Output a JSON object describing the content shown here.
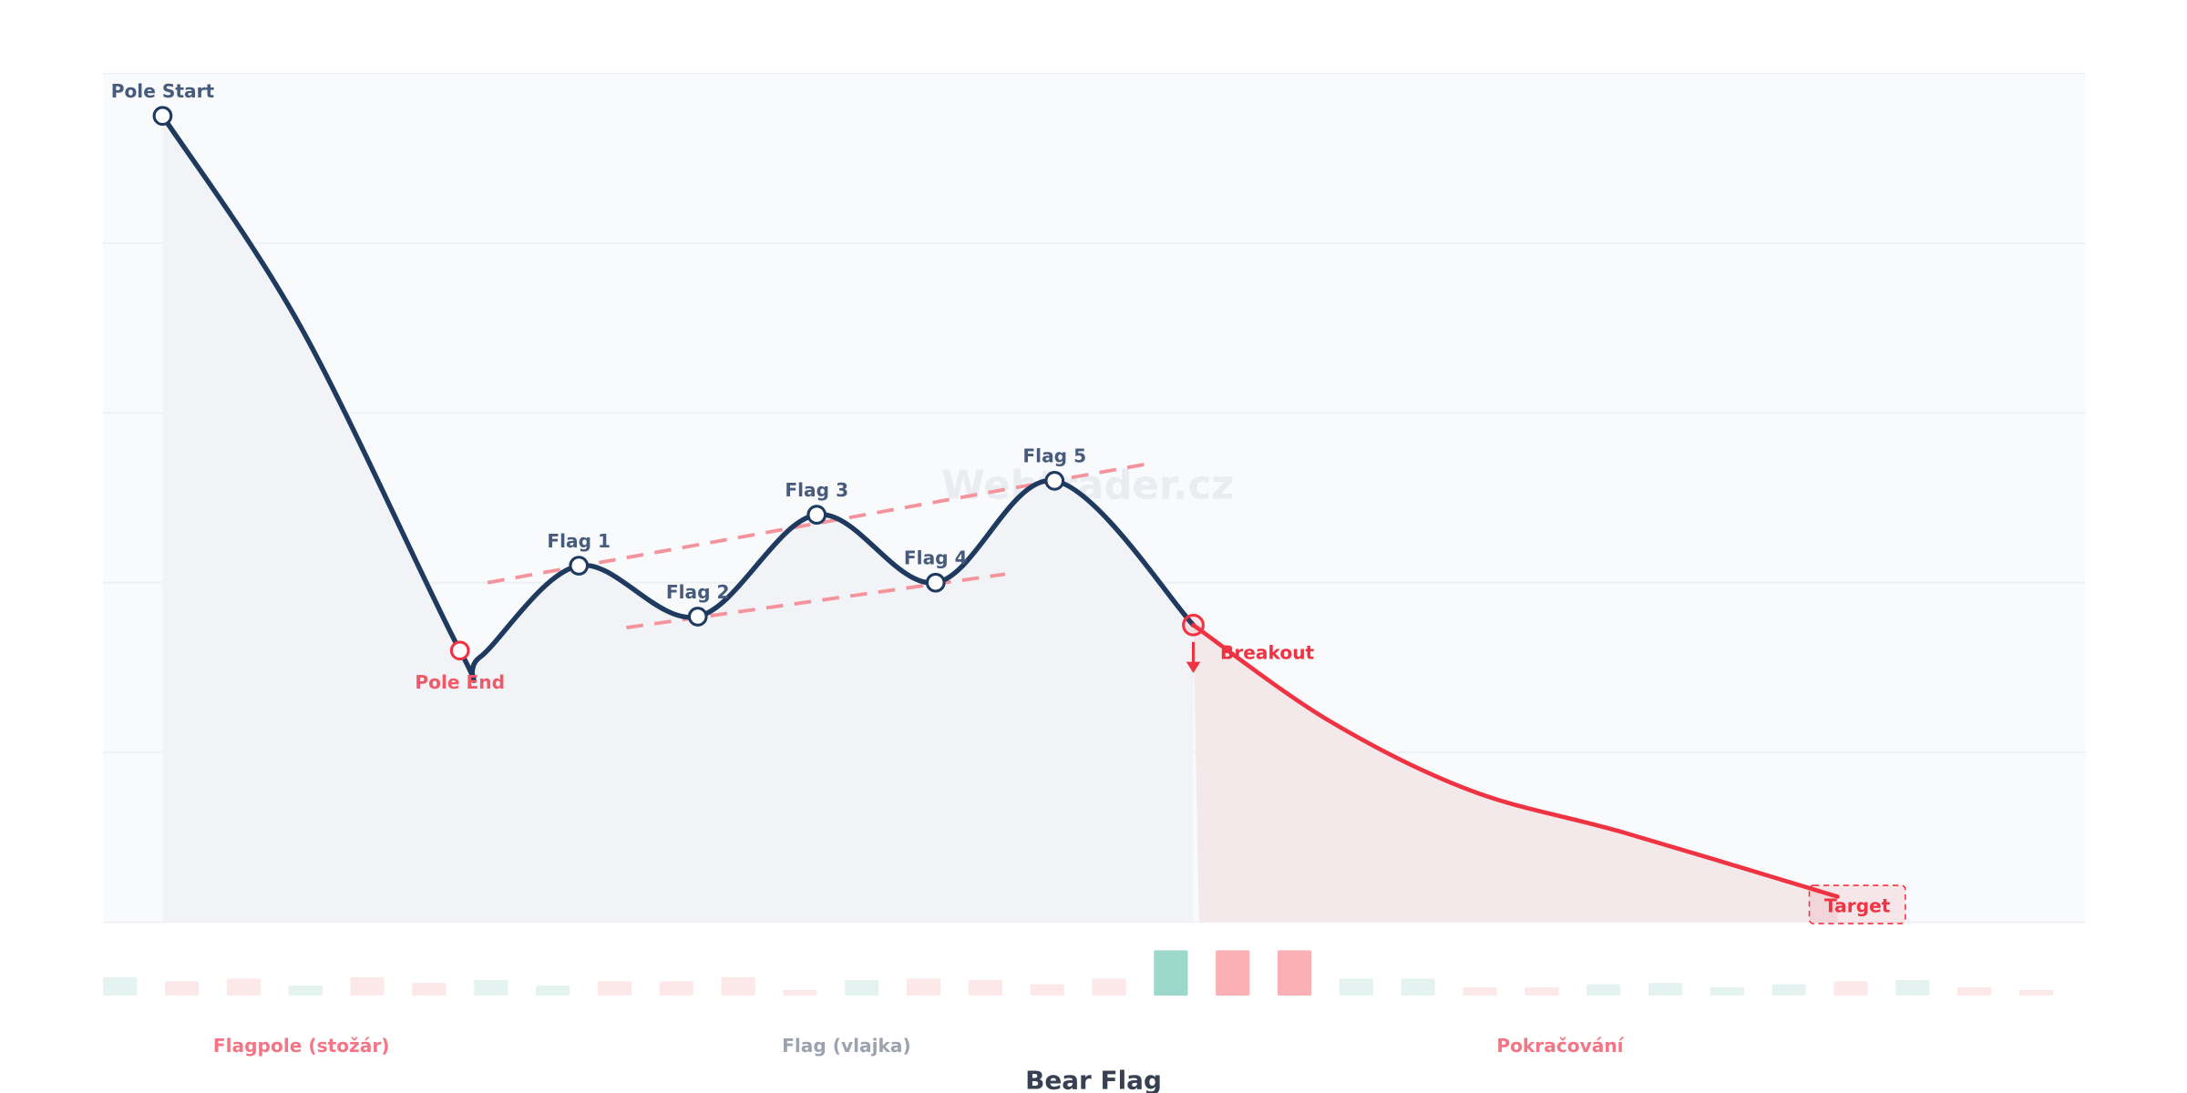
{
  "chart_data": {
    "type": "line",
    "title": "Bear Flag",
    "watermark": "Webtrader.cz",
    "xlim": [
      0,
      100
    ],
    "ylim": [
      0,
      100
    ],
    "grid": true,
    "colors": {
      "pattern_line": "#1e3a5f",
      "continuation_line": "#ef3342",
      "trendline": "#f4939c",
      "fill_pattern": "#f2f3f6",
      "fill_continuation": "#f3e8ea",
      "volume_up": "#e4f3ef",
      "volume_down": "#fde8e9",
      "volume_up_strong": "#9dd8cc",
      "volume_down_strong": "#fbb0b5",
      "phase_pole": "#f47686",
      "phase_flag": "#9ca3af",
      "phase_continuation": "#f47686"
    },
    "series": [
      {
        "points": [
          [
            3,
            95
          ],
          [
            10,
            70
          ],
          [
            18,
            32
          ],
          [
            19,
            31.2
          ],
          [
            24,
            42
          ],
          [
            30,
            36
          ],
          [
            36,
            48
          ],
          [
            42,
            40
          ],
          [
            48,
            52
          ],
          [
            55,
            35
          ]
        ]
      },
      {
        "points": [
          [
            55,
            35
          ],
          [
            61.8,
            23.8
          ],
          [
            69,
            15.5
          ],
          [
            76.8,
            10.5
          ],
          [
            87.5,
            3
          ]
        ]
      }
    ],
    "markers": [
      {
        "label": "Pole Start",
        "x": 3,
        "y": 95,
        "style": "dark",
        "label_pos": "above"
      },
      {
        "label": "Pole End",
        "x": 18,
        "y": 32,
        "style": "red",
        "label_pos": "below"
      },
      {
        "label": "Flag 1",
        "x": 24,
        "y": 42,
        "style": "dark",
        "label_pos": "above"
      },
      {
        "label": "Flag 2",
        "x": 30,
        "y": 36,
        "style": "dark",
        "label_pos": "above"
      },
      {
        "label": "Flag 3",
        "x": 36,
        "y": 48,
        "style": "dark",
        "label_pos": "above"
      },
      {
        "label": "Flag 4",
        "x": 42,
        "y": 40,
        "style": "dark",
        "label_pos": "above"
      },
      {
        "label": "Flag 5",
        "x": 48,
        "y": 52,
        "style": "dark",
        "label_pos": "above"
      }
    ],
    "breakout": {
      "label": "Breakout",
      "x": 55,
      "y": 35
    },
    "target": {
      "label": "Target",
      "x": 88.5,
      "y": 2
    },
    "trendlines": [
      {
        "from": [
          19.4,
          40
        ],
        "to": [
          52.7,
          54
        ]
      },
      {
        "from": [
          26.4,
          34.7
        ],
        "to": [
          45.5,
          41
        ]
      }
    ],
    "volume": {
      "values": [
        13,
        10,
        12,
        7,
        13,
        9,
        11,
        7,
        10,
        10,
        13,
        4,
        11,
        12,
        11,
        8,
        12,
        32,
        32,
        32,
        12,
        12,
        6,
        6,
        8,
        9,
        6,
        8,
        10,
        11,
        6,
        4
      ],
      "direction": [
        "up",
        "down",
        "down",
        "up",
        "down",
        "down",
        "up",
        "up",
        "down",
        "down",
        "down",
        "down",
        "up",
        "down",
        "down",
        "down",
        "down",
        "up",
        "down",
        "down",
        "up",
        "up",
        "down",
        "down",
        "up",
        "up",
        "up",
        "up",
        "down",
        "up",
        "down",
        "down"
      ],
      "strong": [
        17,
        18,
        19
      ]
    },
    "phases": [
      {
        "label": "Flagpole (stožár)",
        "x": 10
      },
      {
        "label": "Flag (vlajka)",
        "x": 37.5
      },
      {
        "label": "Pokračování",
        "x": 73.5
      }
    ]
  }
}
